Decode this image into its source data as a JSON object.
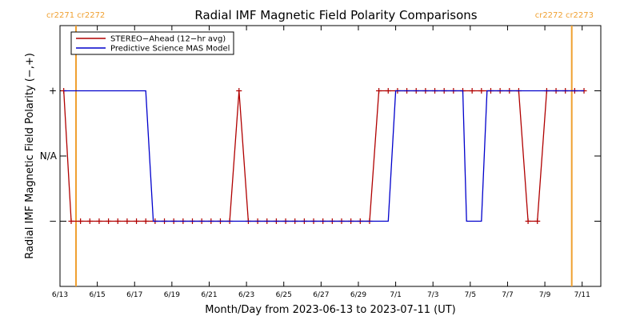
{
  "chart_data": {
    "type": "line",
    "title": "Radial IMF Magnetic Field Polarity Comparisons",
    "xlabel": "Month/Day from 2023-06-13 to 2023-07-11 (UT)",
    "ylabel": "Radial IMF Magnetic Field Polarity (−,+)",
    "xlim": [
      0,
      29
    ],
    "ylim": [
      -2,
      2
    ],
    "x_ticks": [
      {
        "x": 0,
        "label": "6/13"
      },
      {
        "x": 2,
        "label": "6/15"
      },
      {
        "x": 4,
        "label": "6/17"
      },
      {
        "x": 6,
        "label": "6/19"
      },
      {
        "x": 8,
        "label": "6/21"
      },
      {
        "x": 10,
        "label": "6/23"
      },
      {
        "x": 12,
        "label": "6/25"
      },
      {
        "x": 14,
        "label": "6/27"
      },
      {
        "x": 16,
        "label": "6/29"
      },
      {
        "x": 18,
        "label": "7/1"
      },
      {
        "x": 20,
        "label": "7/3"
      },
      {
        "x": 22,
        "label": "7/5"
      },
      {
        "x": 24,
        "label": "7/7"
      },
      {
        "x": 26,
        "label": "7/9"
      },
      {
        "x": 28,
        "label": "7/11"
      }
    ],
    "y_ticks": [
      {
        "y": 1,
        "label": "+"
      },
      {
        "y": 0,
        "label": "N/A"
      },
      {
        "y": -1,
        "label": "−"
      }
    ],
    "legend_position": "top-left",
    "series": [
      {
        "name": "STEREO−Ahead (12−hr avg)",
        "color": "#b00000",
        "markers": true,
        "x": [
          0.2,
          0.6,
          1.1,
          1.6,
          2.1,
          2.6,
          3.1,
          3.6,
          4.1,
          4.6,
          5.1,
          5.6,
          6.1,
          6.6,
          7.1,
          7.6,
          8.1,
          8.6,
          9.1,
          9.6,
          10.1,
          10.6,
          11.1,
          11.6,
          12.1,
          12.6,
          13.1,
          13.6,
          14.1,
          14.6,
          15.1,
          15.6,
          16.1,
          16.6,
          17.1,
          17.6,
          18.1,
          18.6,
          19.1,
          19.6,
          20.1,
          20.6,
          21.1,
          21.6,
          22.1,
          22.6,
          23.1,
          23.6,
          24.1,
          24.6,
          25.1,
          25.6,
          26.1,
          26.6,
          27.1,
          27.6,
          28.1
        ],
        "y": [
          1,
          -1,
          -1,
          -1,
          -1,
          -1,
          -1,
          -1,
          -1,
          -1,
          -1,
          -1,
          -1,
          -1,
          -1,
          -1,
          -1,
          -1,
          -1,
          1,
          -1,
          -1,
          -1,
          -1,
          -1,
          -1,
          -1,
          -1,
          -1,
          -1,
          -1,
          -1,
          -1,
          -1,
          1,
          1,
          1,
          1,
          1,
          1,
          1,
          1,
          1,
          1,
          1,
          1,
          1,
          1,
          1,
          1,
          -1,
          -1,
          1,
          1,
          1,
          1,
          1
        ]
      },
      {
        "name": "Predictive Science MAS Model",
        "color": "#0000cc",
        "markers": false,
        "x": [
          0.2,
          4.6,
          5.0,
          17.6,
          18.0,
          21.6,
          21.8,
          22.6,
          22.9,
          28.1
        ],
        "y": [
          1,
          1,
          -1,
          -1,
          1,
          1,
          -1,
          -1,
          1,
          1
        ]
      }
    ],
    "rotation_markers": [
      {
        "x": 0,
        "label": "cr2271 cr2272",
        "label_side": "left"
      },
      {
        "x": 28.0,
        "label": "cr2272 cr2273",
        "label_side": "right"
      }
    ],
    "marker_color": "#f0a030",
    "grid": false
  }
}
